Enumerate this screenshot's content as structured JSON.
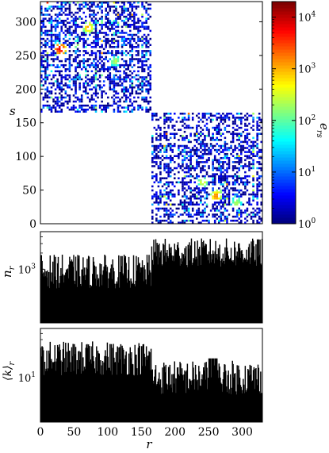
{
  "chart_data": [
    {
      "type": "heatmap",
      "xlabel": "",
      "ylabel": "s",
      "xlim": [
        0,
        330
      ],
      "ylim": [
        0,
        330
      ],
      "y_ticks": [
        0,
        50,
        100,
        150,
        200,
        250,
        300
      ],
      "colorbar": {
        "label": "e_rs",
        "scale": "log",
        "range": [
          1,
          20000
        ],
        "ticks": [
          {
            "value": 1,
            "base": "10",
            "exp": "0"
          },
          {
            "value": 10,
            "base": "10",
            "exp": "1"
          },
          {
            "value": 100,
            "base": "10",
            "exp": "2"
          },
          {
            "value": 1000,
            "base": "10",
            "exp": "3"
          },
          {
            "value": 10000,
            "base": "10",
            "exp": "4"
          }
        ],
        "colormap": "jet"
      },
      "blocks": [
        {
          "name": "upper-left block",
          "r_range": [
            0,
            165
          ],
          "s_range": [
            165,
            330
          ]
        },
        {
          "name": "lower-right block",
          "r_range": [
            165,
            330
          ],
          "s_range": [
            0,
            165
          ]
        }
      ],
      "hotspots": [
        {
          "r": 28,
          "s": 258,
          "value": 8000
        },
        {
          "r": 70,
          "s": 290,
          "value": 1500
        },
        {
          "r": 260,
          "s": 40,
          "value": 2000
        },
        {
          "r": 240,
          "s": 60,
          "value": 500
        },
        {
          "r": 110,
          "s": 240,
          "value": 300
        },
        {
          "r": 290,
          "s": 30,
          "value": 300
        }
      ]
    },
    {
      "type": "bar",
      "ylabel": "n_r",
      "yscale": "log",
      "xlim": [
        0,
        330
      ],
      "ylim": [
        100,
        5000
      ],
      "y_ticks": [
        {
          "value": 1000,
          "base": "10",
          "exp": "3"
        }
      ],
      "segments": [
        {
          "r_range": [
            0,
            165
          ],
          "typical_value": 900,
          "min": 400,
          "max": 2000
        },
        {
          "r_range": [
            165,
            330
          ],
          "typical_value": 2000,
          "min": 1000,
          "max": 4000
        }
      ]
    },
    {
      "type": "bar",
      "ylabel": "⟨k⟩_r",
      "yscale": "log",
      "xlabel": "r",
      "xlim": [
        0,
        330
      ],
      "ylim": [
        2,
        60
      ],
      "x_ticks": [
        0,
        50,
        100,
        150,
        200,
        250,
        300
      ],
      "y_ticks": [
        {
          "value": 10,
          "base": "10",
          "exp": "1"
        }
      ],
      "segments": [
        {
          "r_range": [
            0,
            165
          ],
          "typical_value": 20,
          "min": 10,
          "max": 40
        },
        {
          "r_range": [
            165,
            330
          ],
          "typical_value": 10,
          "min": 5,
          "max": 20
        }
      ],
      "spike": {
        "r_range": [
          250,
          265
        ],
        "value": 45
      }
    }
  ],
  "colors": {
    "frame": "#000000",
    "bars": "#000000",
    "background": "#ffffff"
  }
}
